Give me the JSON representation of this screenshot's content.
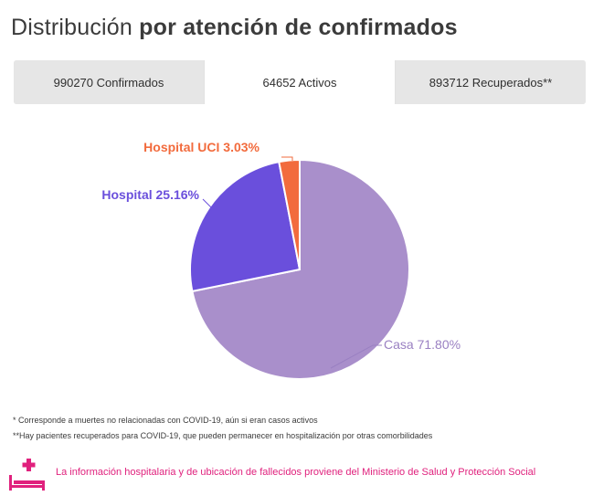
{
  "title": {
    "light": "Distribución",
    "bold": "por atención de confirmados"
  },
  "tabs": [
    {
      "label": "990270 Confirmados",
      "active": false
    },
    {
      "label": "64652 Activos",
      "active": true
    },
    {
      "label": "893712 Recuperados**",
      "active": false
    }
  ],
  "chart_data": {
    "type": "pie",
    "title": "",
    "slices": [
      {
        "label": "Casa 71.80%",
        "value": 71.8,
        "color": "#a98fcb",
        "label_color": "#9a80c2"
      },
      {
        "label": "Hospital 25.16%",
        "value": 25.16,
        "color": "#6a4fdc",
        "label_color": "#6a4fdc"
      },
      {
        "label": "Hospital UCI 3.03%",
        "value": 3.03,
        "color": "#f26b3d",
        "label_color": "#f26b3d"
      }
    ]
  },
  "notes": {
    "note1": "* Corresponde a muertes no relacionadas con COVID-19, aún si eran casos activos",
    "note2": "**Hay pacientes recuperados para COVID-19, que pueden permanecer en hospitalización por otras comorbilidades"
  },
  "info": {
    "icon": "hospital-bed-icon",
    "icon_color": "#e0217d",
    "text": "La información hospitalaria y de ubicación de fallecidos proviene del Ministerio de Salud y Protección Social"
  }
}
